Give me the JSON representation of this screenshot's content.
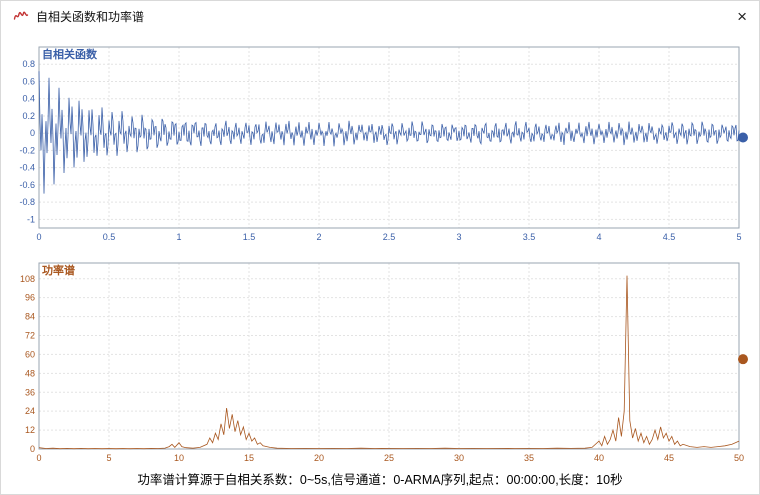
{
  "window": {
    "title": "自相关函数和功率谱",
    "close_label": "×"
  },
  "status_bar": {
    "text": "功率谱计算源于自相关系数：0~5s,信号通道：0-ARMA序列,起点：00:00:00,长度：10秒"
  },
  "colors": {
    "acf_series": "#3a5fa8",
    "spectrum_series": "#a9571f",
    "grid": "#e3e3e3",
    "plot_border": "#9aa5b1"
  },
  "chart_data": [
    {
      "type": "line",
      "title": "自相关函数",
      "color": "#3a5fa8",
      "label_color": "#3a5fa8",
      "xlabel": "",
      "ylabel": "",
      "grid": true,
      "x_range": [
        0,
        5
      ],
      "y_range": [
        -1.1,
        1.0
      ],
      "x_ticks": [
        0,
        0.5,
        1,
        1.5,
        2,
        2.5,
        3,
        3.5,
        4,
        4.5,
        5
      ],
      "y_ticks": [
        -1,
        -0.8,
        -0.6,
        -0.4,
        -0.2,
        0,
        0.2,
        0.4,
        0.6,
        0.8
      ],
      "description": "Autocorrelation of ARMA sequence: dense oscillation decaying from about +0.75/-0.55 near lag 0 to a sustained ±0.13 noise band out to 5 s",
      "synthesis": {
        "n": 700,
        "x_max": 5,
        "seed": 42,
        "noise": 0.05,
        "envelope": {
          "base": 0.13,
          "amp": 0.6,
          "decay": 2.5
        },
        "components": [
          {
            "freq": 13.5,
            "amp": 0.45
          },
          {
            "freq": 42,
            "amp": 0.55
          }
        ]
      },
      "marker": {
        "x": 5,
        "y": -0.05
      }
    },
    {
      "type": "line",
      "title": "功率谱",
      "color": "#a9571f",
      "label_color": "#a9571f",
      "xlabel": "",
      "ylabel": "",
      "grid": true,
      "x_range": [
        0,
        50
      ],
      "y_range": [
        0,
        118
      ],
      "x_ticks": [
        0,
        5,
        10,
        15,
        20,
        25,
        30,
        35,
        40,
        45,
        50
      ],
      "y_ticks": [
        0,
        12,
        24,
        36,
        48,
        60,
        72,
        84,
        96,
        108
      ],
      "description": "Power spectrum 0-50 Hz: peak cluster near 13-15 Hz (max ~26) and dominant spike at 42 Hz (~110), smaller spikes 40-45 Hz",
      "points": [
        [
          0,
          0.8
        ],
        [
          0.5,
          0.3
        ],
        [
          1,
          0.5
        ],
        [
          1.5,
          0.2
        ],
        [
          2,
          0.4
        ],
        [
          2.5,
          0.2
        ],
        [
          3,
          0.4
        ],
        [
          3.5,
          0.2
        ],
        [
          4,
          0.3
        ],
        [
          4.5,
          0.2
        ],
        [
          5,
          0.3
        ],
        [
          5.5,
          0.2
        ],
        [
          6,
          0.3
        ],
        [
          6.5,
          0.2
        ],
        [
          7,
          0.3
        ],
        [
          7.5,
          0.2
        ],
        [
          8,
          0.4
        ],
        [
          8.5,
          0.3
        ],
        [
          9,
          0.6
        ],
        [
          9.3,
          1.5
        ],
        [
          9.5,
          3
        ],
        [
          9.7,
          1
        ],
        [
          10,
          4
        ],
        [
          10.2,
          1.5
        ],
        [
          10.5,
          0.8
        ],
        [
          11,
          0.5
        ],
        [
          11.5,
          1
        ],
        [
          12,
          3
        ],
        [
          12.2,
          7
        ],
        [
          12.4,
          4
        ],
        [
          12.6,
          10
        ],
        [
          12.8,
          6
        ],
        [
          13,
          16
        ],
        [
          13.2,
          9
        ],
        [
          13.4,
          26
        ],
        [
          13.6,
          13
        ],
        [
          13.8,
          22
        ],
        [
          14,
          11
        ],
        [
          14.2,
          18
        ],
        [
          14.4,
          9
        ],
        [
          14.6,
          14
        ],
        [
          14.8,
          6
        ],
        [
          15,
          10
        ],
        [
          15.2,
          5
        ],
        [
          15.4,
          7
        ],
        [
          15.6,
          3
        ],
        [
          15.8,
          4
        ],
        [
          16,
          2
        ],
        [
          16.5,
          1
        ],
        [
          17,
          0.5
        ],
        [
          18,
          0.3
        ],
        [
          19,
          0.4
        ],
        [
          20,
          0.3
        ],
        [
          21,
          0.4
        ],
        [
          22,
          0.3
        ],
        [
          23,
          0.5
        ],
        [
          24,
          0.3
        ],
        [
          25,
          0.4
        ],
        [
          26,
          0.3
        ],
        [
          27,
          0.4
        ],
        [
          28,
          0.3
        ],
        [
          29,
          0.5
        ],
        [
          30,
          0.3
        ],
        [
          31,
          0.4
        ],
        [
          32,
          0.3
        ],
        [
          33,
          0.4
        ],
        [
          34,
          0.3
        ],
        [
          35,
          0.4
        ],
        [
          36,
          0.3
        ],
        [
          37,
          0.5
        ],
        [
          38,
          0.4
        ],
        [
          39,
          0.5
        ],
        [
          39.5,
          1
        ],
        [
          40,
          5
        ],
        [
          40.2,
          2
        ],
        [
          40.4,
          8
        ],
        [
          40.6,
          3
        ],
        [
          40.8,
          6
        ],
        [
          41,
          12
        ],
        [
          41.2,
          5
        ],
        [
          41.4,
          20
        ],
        [
          41.6,
          8
        ],
        [
          41.8,
          24
        ],
        [
          42,
          110
        ],
        [
          42.2,
          18
        ],
        [
          42.4,
          7
        ],
        [
          42.6,
          13
        ],
        [
          42.8,
          5
        ],
        [
          43,
          10
        ],
        [
          43.2,
          4
        ],
        [
          43.4,
          8
        ],
        [
          43.6,
          3
        ],
        [
          43.8,
          6
        ],
        [
          44,
          12
        ],
        [
          44.2,
          6
        ],
        [
          44.4,
          14
        ],
        [
          44.6,
          7
        ],
        [
          44.8,
          10
        ],
        [
          45,
          5
        ],
        [
          45.2,
          8
        ],
        [
          45.4,
          3
        ],
        [
          45.6,
          5
        ],
        [
          45.8,
          2
        ],
        [
          46,
          3
        ],
        [
          46.5,
          1.5
        ],
        [
          47,
          1
        ],
        [
          47.5,
          1.5
        ],
        [
          48,
          1
        ],
        [
          48.5,
          1.5
        ],
        [
          49,
          2
        ],
        [
          49.5,
          3
        ],
        [
          50,
          5
        ]
      ],
      "marker": {
        "x": 50,
        "y": 57
      }
    }
  ]
}
